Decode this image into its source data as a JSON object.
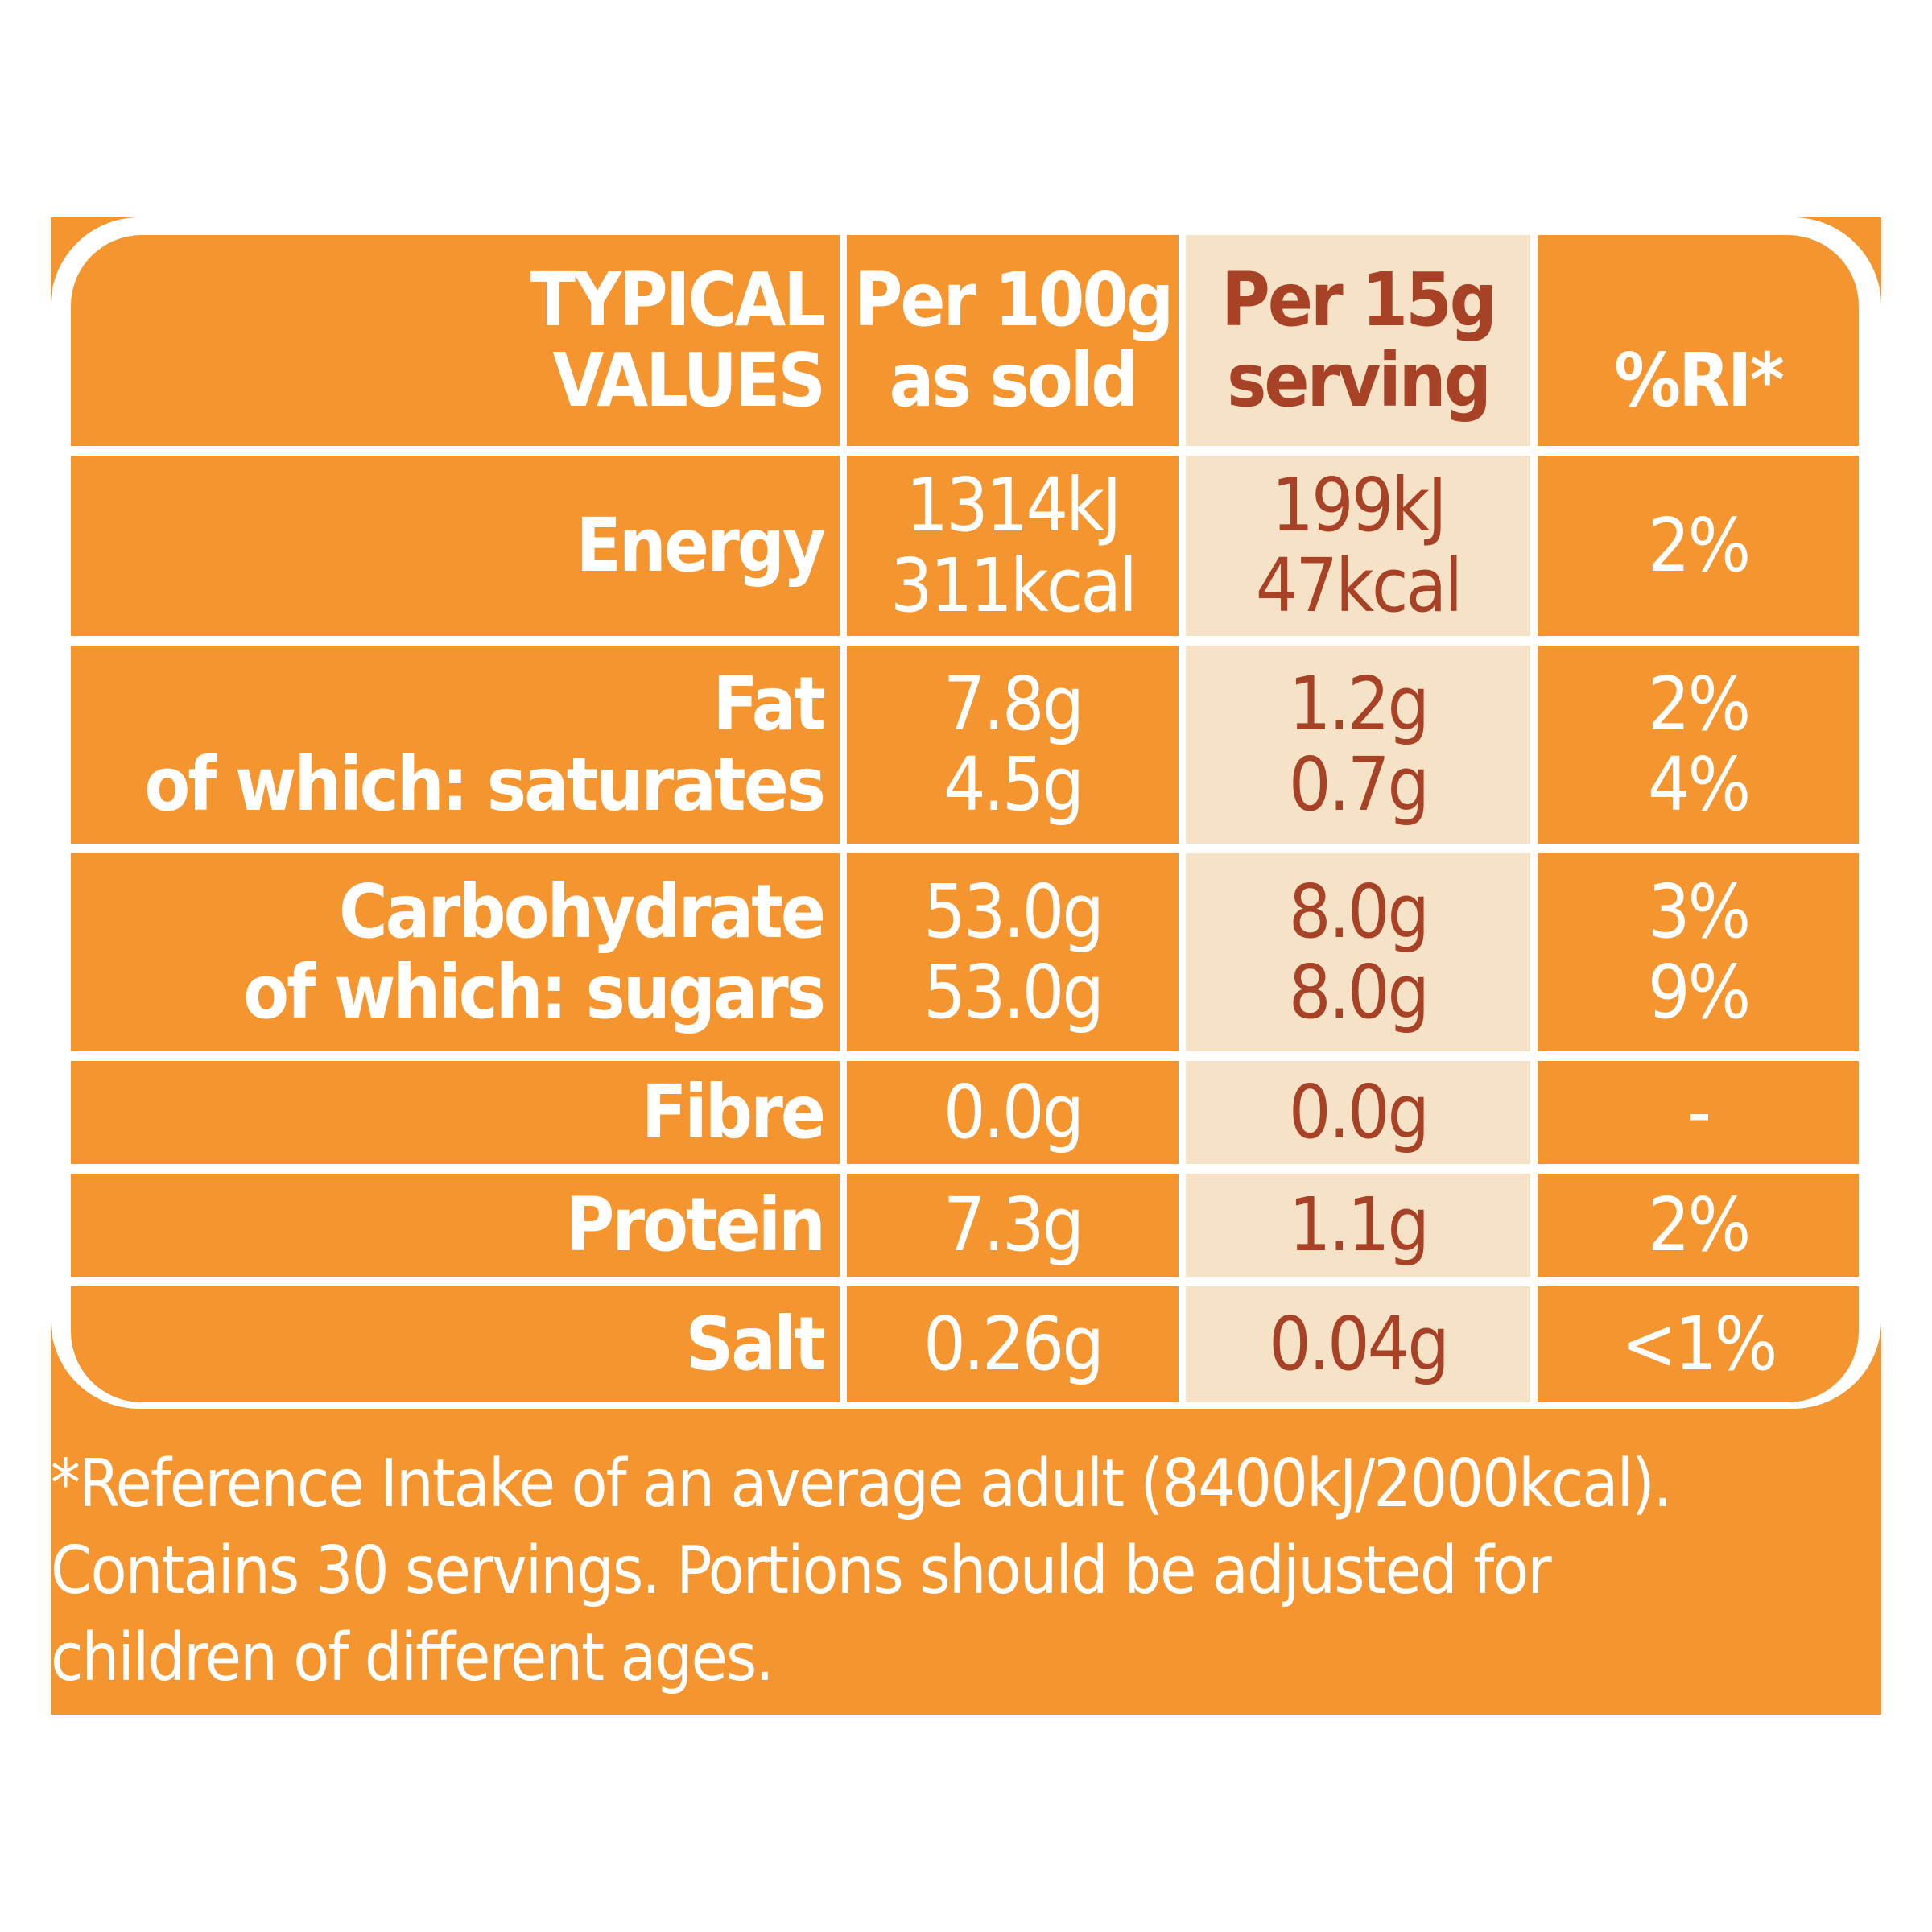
{
  "colors": {
    "panel_orange": "#f4952f",
    "serving_cream": "#f6e2c6",
    "serving_text": "#a84226",
    "text_white": "#ffffff"
  },
  "table": {
    "headers": {
      "label_line1": "TYPICAL",
      "label_line2": "VALUES",
      "per100_line1": "Per 100g",
      "per100_line2": "as sold",
      "per_serving_line1": "Per 15g",
      "per_serving_line2": "serving",
      "ri": "%RI*"
    },
    "rows": [
      {
        "labels": [
          "Energy"
        ],
        "per_100g": [
          "1314kJ",
          "311kcal"
        ],
        "per_serving": [
          "199kJ",
          "47kcal"
        ],
        "ri": [
          "2%"
        ]
      },
      {
        "labels": [
          "Fat",
          "of which: saturates"
        ],
        "per_100g": [
          "7.8g",
          "4.5g"
        ],
        "per_serving": [
          "1.2g",
          "0.7g"
        ],
        "ri": [
          "2%",
          "4%"
        ]
      },
      {
        "labels": [
          "Carbohydrate",
          "of which: sugars"
        ],
        "per_100g": [
          "53.0g",
          "53.0g"
        ],
        "per_serving": [
          "8.0g",
          "8.0g"
        ],
        "ri": [
          "3%",
          "9%"
        ]
      },
      {
        "labels": [
          "Fibre"
        ],
        "per_100g": [
          "0.0g"
        ],
        "per_serving": [
          "0.0g"
        ],
        "ri": [
          "-"
        ]
      },
      {
        "labels": [
          "Protein"
        ],
        "per_100g": [
          "7.3g"
        ],
        "per_serving": [
          "1.1g"
        ],
        "ri": [
          "2%"
        ]
      },
      {
        "labels": [
          "Salt"
        ],
        "per_100g": [
          "0.26g"
        ],
        "per_serving": [
          "0.04g"
        ],
        "ri": [
          "<1%"
        ]
      }
    ]
  },
  "footnote": {
    "line1": "*Reference Intake of an average adult (8400kJ/2000kcal).",
    "line2": "Contains 30 servings. Portions should be adjusted for",
    "line3": "children of different ages."
  }
}
